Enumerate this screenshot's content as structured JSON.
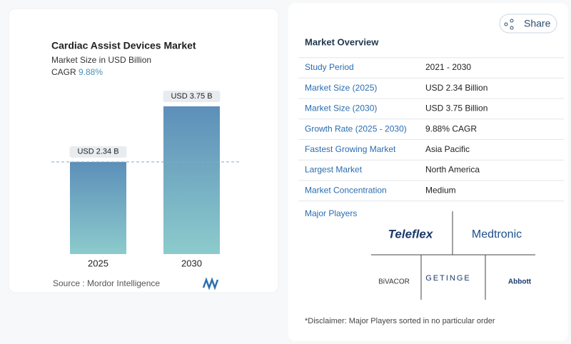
{
  "chart_data": {
    "type": "bar",
    "title": "Cardiac Assist Devices Market",
    "subtitle": "Market Size in USD Billion",
    "cagr_label": "CAGR",
    "cagr": "9.88%",
    "categories": [
      "2025",
      "2030"
    ],
    "values": [
      2.34,
      3.75
    ],
    "value_labels": [
      "USD 2.34 B",
      "USD 3.75 B"
    ],
    "gradient": [
      "#5d8fb9",
      "#8ccbcc"
    ],
    "reference_line": true,
    "source": "Source :  Mordor Intelligence"
  },
  "share": "Share",
  "overview": {
    "title": "Market Overview",
    "rows": [
      [
        "Study Period",
        "2021 - 2030"
      ],
      [
        "Market Size (2025)",
        "USD 2.34 Billion"
      ],
      [
        "Market Size (2030)",
        "USD 3.75 Billion"
      ],
      [
        "Growth Rate (2025 - 2030)",
        "9.88% CAGR"
      ],
      [
        "Fastest Growing Market",
        "Asia Pacific"
      ],
      [
        "Largest Market",
        "North America"
      ],
      [
        "Market Concentration",
        "Medium"
      ]
    ]
  },
  "major_players": {
    "title": "Major Players",
    "logos": [
      "Teleflex",
      "Medtronic",
      "BiVACOR",
      "GETINGE",
      "Abbott"
    ]
  },
  "disclaimer": "*Disclaimer: Major Players sorted in no particular order"
}
